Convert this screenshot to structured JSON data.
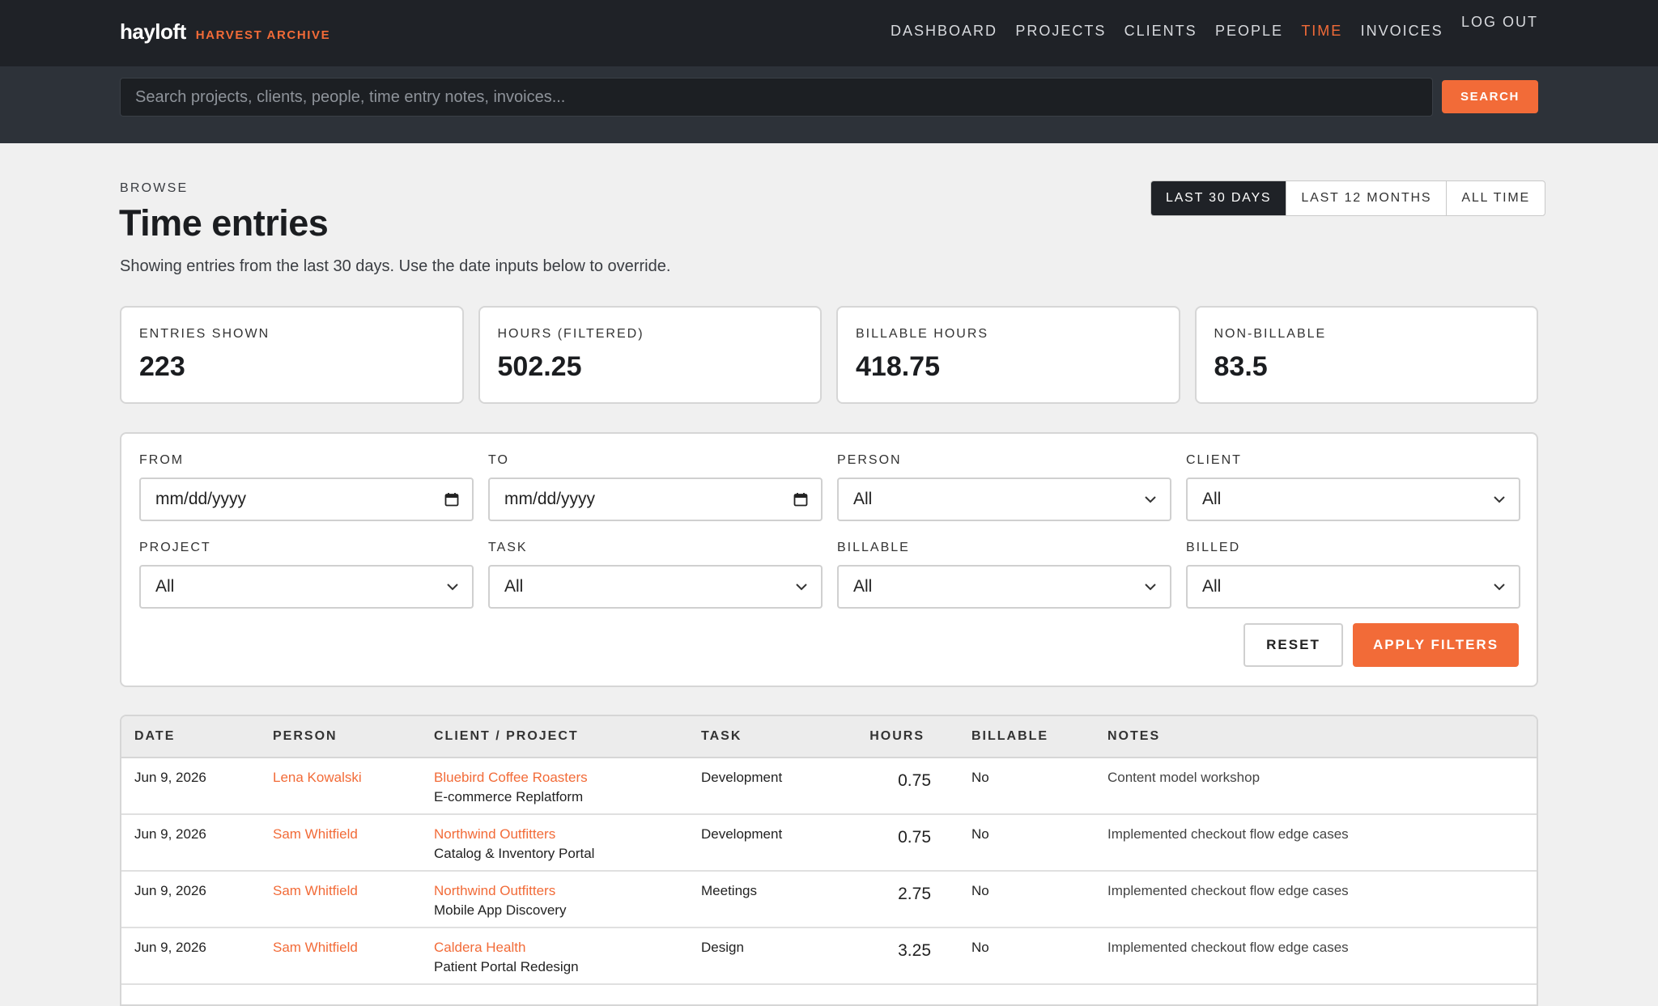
{
  "brand": {
    "name": "hayloft",
    "sub": "HARVEST ARCHIVE"
  },
  "nav": {
    "items": [
      {
        "label": "DASHBOARD",
        "active": false
      },
      {
        "label": "PROJECTS",
        "active": false
      },
      {
        "label": "CLIENTS",
        "active": false
      },
      {
        "label": "PEOPLE",
        "active": false
      },
      {
        "label": "TIME",
        "active": true
      },
      {
        "label": "INVOICES",
        "active": false
      }
    ],
    "logout": "LOG OUT"
  },
  "search": {
    "placeholder": "Search projects, clients, people, time entry notes, invoices...",
    "button": "SEARCH"
  },
  "header": {
    "eyebrow": "BROWSE",
    "title": "Time entries",
    "subtitle": "Showing entries from the last 30 days. Use the date inputs below to override."
  },
  "range": {
    "options": [
      "LAST 30 DAYS",
      "LAST 12 MONTHS",
      "ALL TIME"
    ],
    "selected": "LAST 30 DAYS"
  },
  "stats": [
    {
      "label": "ENTRIES SHOWN",
      "value": "223"
    },
    {
      "label": "HOURS (FILTERED)",
      "value": "502.25"
    },
    {
      "label": "BILLABLE HOURS",
      "value": "418.75"
    },
    {
      "label": "NON-BILLABLE",
      "value": "83.5"
    }
  ],
  "filters": {
    "fields": [
      {
        "label": "FROM",
        "value": "mm/dd/yyyy",
        "kind": "date"
      },
      {
        "label": "TO",
        "value": "mm/dd/yyyy",
        "kind": "date"
      },
      {
        "label": "PERSON",
        "value": "All",
        "kind": "select"
      },
      {
        "label": "CLIENT",
        "value": "All",
        "kind": "select"
      },
      {
        "label": "PROJECT",
        "value": "All",
        "kind": "select"
      },
      {
        "label": "TASK",
        "value": "All",
        "kind": "select"
      },
      {
        "label": "BILLABLE",
        "value": "All",
        "kind": "select"
      },
      {
        "label": "BILLED",
        "value": "All",
        "kind": "select"
      }
    ],
    "reset": "RESET",
    "apply": "APPLY FILTERS"
  },
  "table": {
    "columns": [
      "DATE",
      "PERSON",
      "CLIENT / PROJECT",
      "TASK",
      "HOURS",
      "BILLABLE",
      "NOTES"
    ],
    "rows": [
      {
        "date": "Jun 9, 2026",
        "person": "Lena Kowalski",
        "client": "Bluebird Coffee Roasters",
        "project": "E-commerce Replatform",
        "task": "Development",
        "hours": "0.75",
        "billable": "No",
        "notes": "Content model workshop"
      },
      {
        "date": "Jun 9, 2026",
        "person": "Sam Whitfield",
        "client": "Northwind Outfitters",
        "project": "Catalog & Inventory Portal",
        "task": "Development",
        "hours": "0.75",
        "billable": "No",
        "notes": "Implemented checkout flow edge cases"
      },
      {
        "date": "Jun 9, 2026",
        "person": "Sam Whitfield",
        "client": "Northwind Outfitters",
        "project": "Mobile App Discovery",
        "task": "Meetings",
        "hours": "2.75",
        "billable": "No",
        "notes": "Implemented checkout flow edge cases"
      },
      {
        "date": "Jun 9, 2026",
        "person": "Sam Whitfield",
        "client": "Caldera Health",
        "project": "Patient Portal Redesign",
        "task": "Design",
        "hours": "3.25",
        "billable": "No",
        "notes": "Implemented checkout flow edge cases"
      }
    ]
  },
  "colors": {
    "accent": "#f26b38",
    "nav_bg": "#1f2227",
    "search_bg": "#2d3239"
  },
  "icons": {
    "date": "calendar-icon",
    "select": "chevron-down-icon"
  }
}
